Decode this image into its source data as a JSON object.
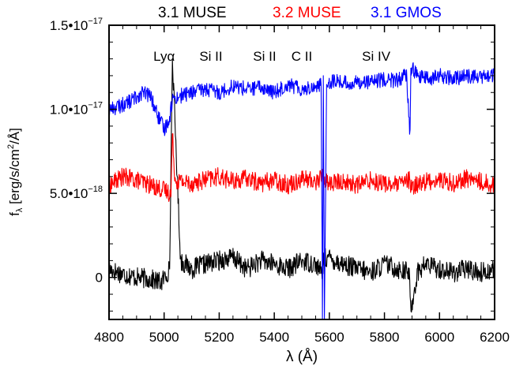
{
  "chart_data": {
    "type": "line",
    "legend": [
      {
        "label": "3.1 MUSE",
        "color": "#000000"
      },
      {
        "label": "3.2 MUSE",
        "color": "#ff0000"
      },
      {
        "label": "3.1 GMOS",
        "color": "#0000ff"
      }
    ],
    "xlabel": "λ (Å)",
    "ylabel": "f",
    "ylabel_sub": "λ",
    "ylabel_units": " [erg/s/cm",
    "ylabel_sup": "2",
    "ylabel_tail": "/Å]",
    "xlim": [
      4800,
      6200
    ],
    "ylim": [
      -2.5e-18,
      1.5e-17
    ],
    "xticks": [
      {
        "value": 4800,
        "label": "4800"
      },
      {
        "value": 5000,
        "label": "5000"
      },
      {
        "value": 5200,
        "label": "5200"
      },
      {
        "value": 5400,
        "label": "5400"
      },
      {
        "value": 5600,
        "label": "5600"
      },
      {
        "value": 5800,
        "label": "5800"
      },
      {
        "value": 6000,
        "label": "6000"
      },
      {
        "value": 6200,
        "label": "6200"
      }
    ],
    "yticks": [
      {
        "value": 0,
        "base": "0",
        "exp": ""
      },
      {
        "value": 5e-18,
        "base": "5.0•10",
        "exp": "−18"
      },
      {
        "value": 1e-17,
        "base": "1.0•10",
        "exp": "−17"
      },
      {
        "value": 1.5e-17,
        "base": "1.5•10",
        "exp": "−17"
      }
    ],
    "annotations": [
      {
        "label": "Lyα",
        "x": 5000
      },
      {
        "label": "Si II",
        "x": 5170
      },
      {
        "label": "Si II",
        "x": 5365
      },
      {
        "label": "C II",
        "x": 5500
      },
      {
        "label": "Si IV",
        "x": 5770
      }
    ],
    "series": [
      {
        "name": "3.1 MUSE",
        "color": "#000000",
        "x": [
          4800,
          4850,
          4900,
          4950,
          4990,
          5020,
          5030,
          5060,
          5100,
          5150,
          5200,
          5250,
          5300,
          5350,
          5400,
          5450,
          5500,
          5550,
          5575,
          5578,
          5590,
          5650,
          5700,
          5750,
          5800,
          5850,
          5890,
          5895,
          5920,
          5950,
          6000,
          6050,
          6100,
          6150,
          6200
        ],
        "y": [
          5e-19,
          2e-19,
          0,
          -1e-19,
          -3e-19,
          5e-19,
          1.3e-17,
          1e-18,
          5e-19,
          8e-19,
          1e-18,
          1.2e-18,
          5e-19,
          1e-18,
          8e-19,
          5e-19,
          1e-18,
          8e-19,
          2e-19,
          1e-18,
          1.2e-18,
          8e-19,
          5e-19,
          3e-19,
          8e-19,
          5e-19,
          3e-19,
          -2e-18,
          3e-19,
          8e-19,
          5e-19,
          3e-19,
          5e-19,
          3e-19,
          5e-19
        ]
      },
      {
        "name": "3.2 MUSE",
        "color": "#ff0000",
        "x": [
          4800,
          4850,
          4900,
          4950,
          5000,
          5025,
          5030,
          5040,
          5100,
          5150,
          5200,
          5250,
          5300,
          5350,
          5400,
          5450,
          5500,
          5550,
          5575,
          5585,
          5600,
          5650,
          5700,
          5750,
          5800,
          5850,
          5890,
          5895,
          5920,
          5950,
          6000,
          6050,
          6100,
          6150,
          6200
        ],
        "y": [
          5.5e-18,
          6e-18,
          5.8e-18,
          5.5e-18,
          5.2e-18,
          5e-18,
          8.5e-18,
          5.8e-18,
          5.6e-18,
          5.8e-18,
          6e-18,
          5.7e-18,
          5.9e-18,
          5.6e-18,
          5.8e-18,
          5.5e-18,
          5.9e-18,
          5.7e-18,
          6e-18,
          5.8e-18,
          5.6e-18,
          5.7e-18,
          5.5e-18,
          5.8e-18,
          5.6e-18,
          5.5e-18,
          5.8e-18,
          5.2e-18,
          5.6e-18,
          5.7e-18,
          5.8e-18,
          5.6e-18,
          5.9e-18,
          5.7e-18,
          5.5e-18
        ]
      },
      {
        "name": "3.1 GMOS",
        "color": "#0000ff",
        "x": [
          4800,
          4840,
          4880,
          4920,
          4950,
          4980,
          5000,
          5020,
          5030,
          5060,
          5100,
          5150,
          5200,
          5250,
          5300,
          5350,
          5400,
          5450,
          5500,
          5540,
          5570,
          5575,
          5578,
          5582,
          5590,
          5620,
          5680,
          5720,
          5760,
          5800,
          5840,
          5880,
          5893,
          5896,
          5900,
          5920,
          5960,
          6000,
          6050,
          6100,
          6150,
          6200
        ],
        "y": [
          1e-17,
          1.02e-17,
          1.05e-17,
          1.1e-17,
          1.08e-17,
          9.5e-18,
          8.8e-18,
          9.5e-18,
          1.06e-17,
          1.08e-17,
          1.1e-17,
          1.12e-17,
          1.1e-17,
          1.14e-17,
          1.12e-17,
          1.13e-17,
          1.1e-17,
          1.15e-17,
          1.12e-17,
          1.13e-17,
          1.15e-17,
          -2.5e-18,
          1.2e-17,
          -2.5e-18,
          1.16e-17,
          1.17e-17,
          1.15e-17,
          1.17e-17,
          1.16e-17,
          1.18e-17,
          1.17e-17,
          1.2e-17,
          8.5e-18,
          1.22e-17,
          1.25e-17,
          1.2e-17,
          1.18e-17,
          1.2e-17,
          1.18e-17,
          1.2e-17,
          1.19e-17,
          1.2e-17
        ]
      }
    ]
  }
}
